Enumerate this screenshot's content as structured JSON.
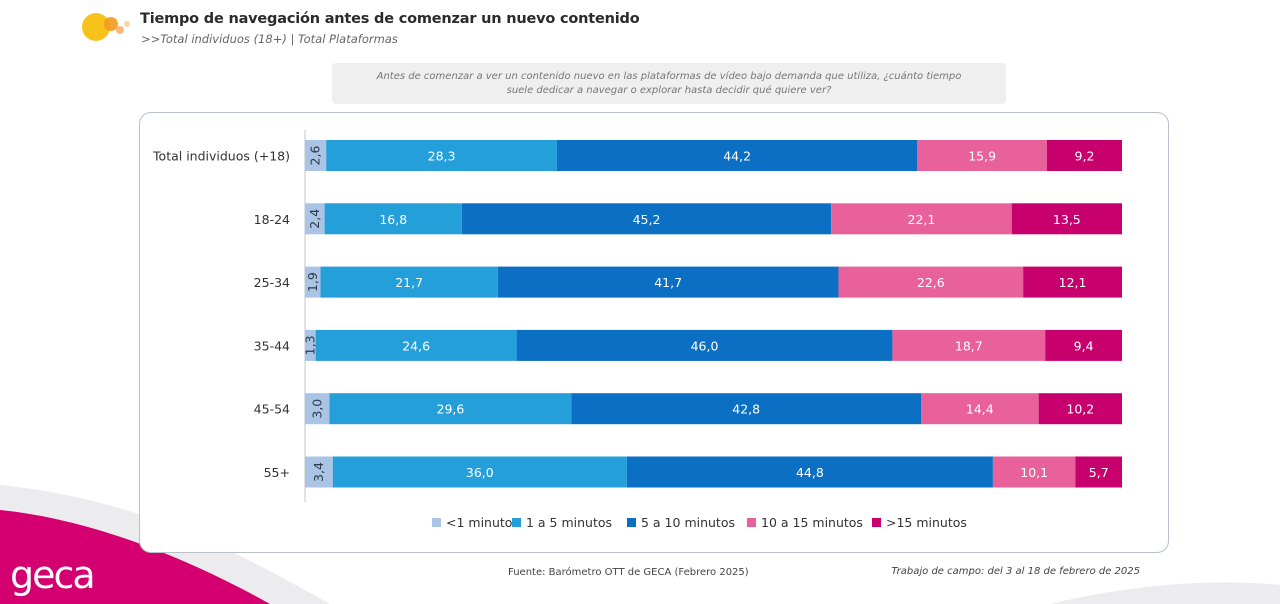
{
  "header": {
    "title": "Tiempo de navegación antes de comenzar un nuevo contenido",
    "subtitle": ">>Total individuos (18+) | Total Plataformas"
  },
  "question": "Antes de comenzar a ver un contenido nuevo en las plataformas de vídeo bajo demanda que utiliza, ¿cuánto tiempo suele dedicar a navegar o explorar hasta decidir qué quiere ver?",
  "footer": {
    "source": "Fuente: Barómetro OTT de GECA (Febrero 2025)",
    "fieldwork": "Trabajo de campo: del 3 al 18 de febrero de 2025",
    "brand": "geca"
  },
  "colors": {
    "brand_magenta": "#d4006f",
    "panel_border": "#b9bfcc",
    "logo_yellow": "#f7c21a",
    "logo_orange": "#f39a1e"
  },
  "chart_data": {
    "type": "bar",
    "orientation": "horizontal",
    "stacked": true,
    "percent_stacked": true,
    "categories": [
      "Total individuos (+18)",
      "18-24",
      "25-34",
      "35-44",
      "45-54",
      "55+"
    ],
    "series": [
      {
        "name": "<1 minuto",
        "color": "#a9c4e4",
        "values": [
          2.6,
          2.4,
          1.9,
          1.3,
          3.0,
          3.4
        ]
      },
      {
        "name": "1 a 5 minutos",
        "color": "#259fd9",
        "values": [
          28.3,
          16.8,
          21.7,
          24.6,
          29.6,
          36.0
        ]
      },
      {
        "name": "5 a 10 minutos",
        "color": "#0b6fc4",
        "values": [
          44.2,
          45.2,
          41.7,
          46.0,
          42.8,
          44.8
        ]
      },
      {
        "name": "10 a 15 minutos",
        "color": "#e8619a",
        "values": [
          15.9,
          22.1,
          22.6,
          18.7,
          14.4,
          10.1
        ]
      },
      {
        "name": ">15 minutos",
        "color": "#c8006e",
        "values": [
          9.2,
          13.5,
          12.1,
          9.4,
          10.2,
          5.7
        ]
      }
    ],
    "legend": "bottom",
    "grid": false
  }
}
